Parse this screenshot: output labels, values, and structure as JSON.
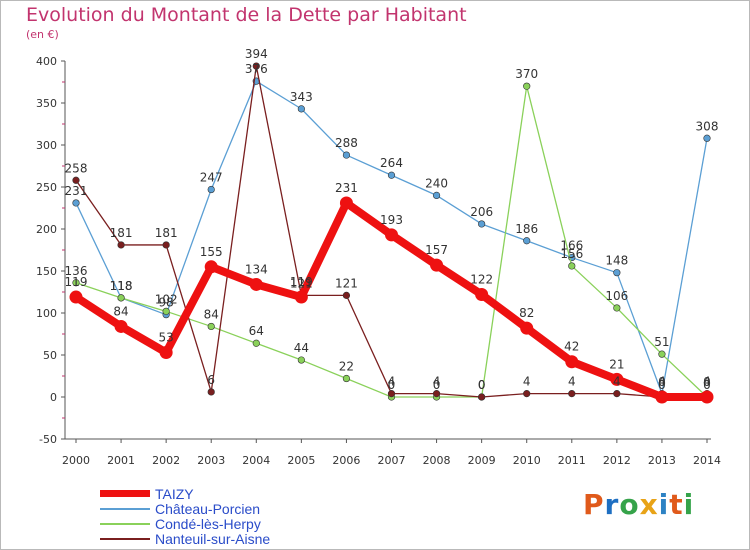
{
  "title": "Evolution du Montant de la Dette par Habitant",
  "unit": "(en €)",
  "logo": {
    "text": "Proxiti",
    "colors": [
      "#e05a1b",
      "#1e6fc2",
      "#35a34a",
      "#e8a317",
      "#2d82c4",
      "#e05a1b",
      "#35a34a"
    ]
  },
  "chart_data": {
    "type": "line",
    "x": [
      "2000",
      "2001",
      "2002",
      "2003",
      "2004",
      "2005",
      "2006",
      "2007",
      "2008",
      "2009",
      "2010",
      "2011",
      "2012",
      "2013",
      "2014"
    ],
    "ylim": [
      -50,
      400
    ],
    "yticks": [
      "-50",
      "0",
      "50",
      "100",
      "150",
      "200",
      "250",
      "300",
      "350",
      "400"
    ],
    "grid": false,
    "legend_position": "bottom-left",
    "series": [
      {
        "name": "TAIZY",
        "color": "#ee1111",
        "values": [
          119,
          84,
          53,
          155,
          134,
          119,
          231,
          193,
          157,
          122,
          82,
          42,
          21,
          0,
          0
        ],
        "labels": [
          "119",
          "84",
          "53",
          "155",
          "134",
          "119",
          "231",
          "193",
          "157",
          "122",
          "82",
          "42",
          "21",
          "0",
          "0"
        ]
      },
      {
        "name": "Château-Porcien",
        "color": "#5b9fd4",
        "values": [
          231,
          118,
          98,
          247,
          376,
          343,
          288,
          264,
          240,
          206,
          186,
          166,
          148,
          4,
          308
        ],
        "labels": [
          "231",
          "118",
          "98",
          "247",
          "376",
          "343",
          "288",
          "264",
          "240",
          "206",
          "186",
          "166",
          "148",
          "4",
          "308"
        ]
      },
      {
        "name": "Condé-lès-Herpy",
        "color": "#8ad15a",
        "values": [
          136,
          118,
          102,
          84,
          64,
          44,
          22,
          0,
          0,
          0,
          370,
          156,
          106,
          51,
          0
        ],
        "labels": [
          "136",
          "118",
          "102",
          "84",
          "64",
          "44",
          "22",
          "0",
          "0",
          "0",
          "370",
          "156",
          "106",
          "51",
          "0"
        ]
      },
      {
        "name": "Nanteuil-sur-Aisne",
        "color": "#7a1f1f",
        "values": [
          258,
          181,
          181,
          6,
          394,
          121,
          121,
          4,
          4,
          0,
          4,
          4,
          4,
          0,
          4
        ],
        "labels": [
          "258",
          "181",
          "181",
          "6",
          "394",
          "121",
          "121",
          "4",
          "4",
          "0",
          "4",
          "4",
          "4",
          "0",
          "4"
        ]
      }
    ]
  }
}
